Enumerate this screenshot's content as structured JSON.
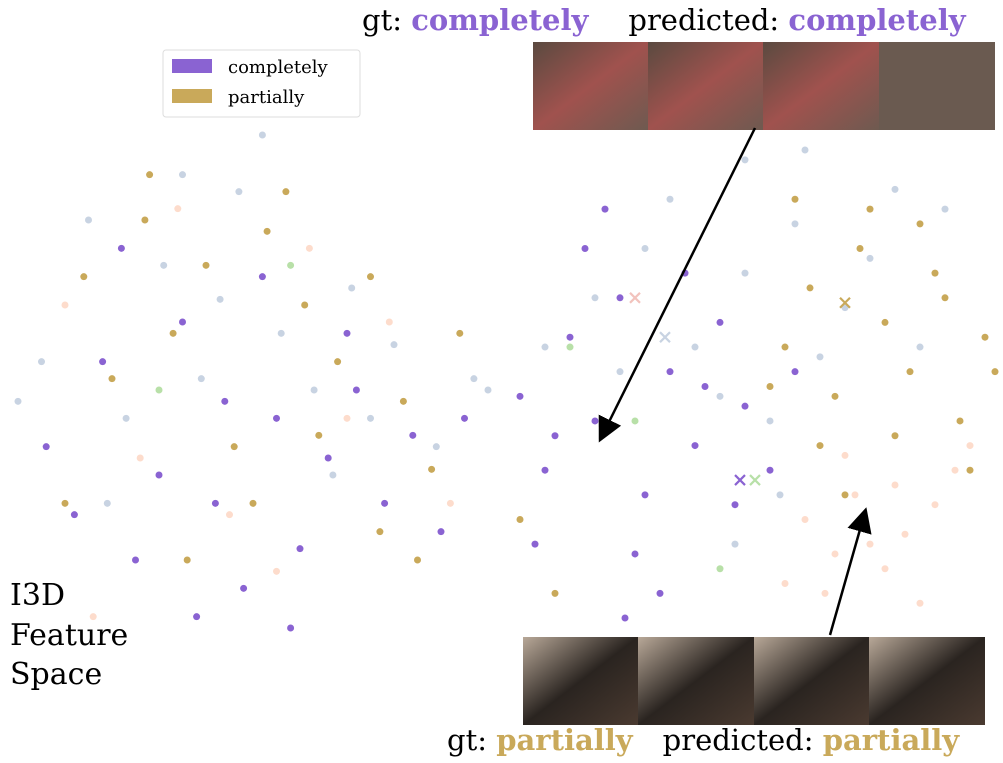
{
  "chart_data": [
    {
      "type": "scatter",
      "legend": "upper center",
      "series": [
        {
          "name": "completely",
          "color": "#8a63d2",
          "x": [
            6,
            12,
            18,
            25,
            30,
            35,
            42,
            48,
            55,
            60,
            66,
            72,
            78,
            84,
            90,
            95,
            22,
            38,
            52,
            70,
            58,
            44
          ],
          "y": [
            40,
            28,
            55,
            20,
            35,
            62,
            30,
            15,
            45,
            22,
            38,
            50,
            30,
            42,
            25,
            45,
            75,
            10,
            70,
            60,
            8,
            48
          ]
        },
        {
          "name": "partially",
          "color": "#c9a95a",
          "x": [
            14,
            20,
            27,
            33,
            40,
            46,
            53,
            61,
            68,
            75,
            82,
            88,
            94,
            28,
            50,
            64,
            36,
            77,
            10,
            57,
            85
          ],
          "y": [
            70,
            52,
            80,
            60,
            72,
            40,
            78,
            65,
            55,
            70,
            48,
            36,
            60,
            88,
            30,
            42,
            20,
            25,
            30,
            85,
            20
          ]
        },
        {
          "color": "#c8d3e2",
          "x": [
            5,
            15,
            23,
            31,
            39,
            47,
            56,
            63,
            71,
            80,
            89,
            97,
            19,
            43,
            67,
            35,
            52,
            75,
            0,
            100
          ],
          "y": [
            55,
            80,
            45,
            72,
            52,
            85,
            60,
            50,
            68,
            58,
            40,
            52,
            30,
            66,
            35,
            88,
            95,
            45,
            48,
            50
          ]
        },
        {
          "color": "#fddccc",
          "x": [
            10,
            26,
            45,
            62,
            79,
            92,
            34,
            55,
            16,
            70
          ],
          "y": [
            65,
            38,
            28,
            75,
            62,
            30,
            82,
            18,
            10,
            45
          ]
        },
        {
          "color": "#b8e0a8",
          "x": [
            30,
            58
          ],
          "y": [
            50,
            72
          ]
        }
      ]
    },
    {
      "type": "scatter",
      "series": [
        {
          "color": "#8a63d2",
          "x": [
            5,
            10,
            15,
            20,
            25,
            30,
            35,
            40,
            45,
            50,
            8,
            18,
            28,
            38,
            48,
            55,
            22,
            33,
            60,
            12,
            42,
            26
          ],
          "y": [
            50,
            35,
            62,
            45,
            70,
            30,
            55,
            40,
            65,
            48,
            20,
            80,
            18,
            75,
            28,
            35,
            88,
            10,
            55,
            42,
            52,
            5
          ]
        },
        {
          "color": "#c9a95a",
          "x": [
            58,
            63,
            68,
            73,
            78,
            83,
            88,
            93,
            98,
            65,
            75,
            85,
            95,
            70,
            80,
            90,
            5,
            12,
            60,
            100,
            55
          ],
          "y": [
            60,
            72,
            50,
            80,
            65,
            55,
            75,
            45,
            62,
            40,
            88,
            85,
            35,
            30,
            42,
            70,
            25,
            10,
            90,
            55,
            52
          ]
        },
        {
          "color": "#c8d3e2",
          "x": [
            20,
            30,
            40,
            50,
            60,
            70,
            80,
            45,
            55,
            65,
            35,
            75,
            25,
            50,
            62,
            85,
            10,
            48,
            57,
            90
          ],
          "y": [
            70,
            80,
            60,
            75,
            85,
            68,
            92,
            50,
            45,
            58,
            90,
            78,
            55,
            98,
            100,
            60,
            60,
            20,
            30,
            88
          ]
        },
        {
          "color": "#fddccc",
          "x": [
            62,
            68,
            72,
            78,
            82,
            88,
            92,
            66,
            75,
            85,
            95,
            70,
            80,
            58
          ],
          "y": [
            25,
            18,
            30,
            15,
            22,
            28,
            35,
            10,
            20,
            8,
            40,
            38,
            32,
            12
          ]
        },
        {
          "color": "#b8e0a8",
          "x": [
            15,
            28,
            45
          ],
          "y": [
            60,
            45,
            15
          ]
        },
        {
          "color": "#f2c3bd",
          "marker": "x",
          "x": [
            28
          ],
          "y": [
            70
          ]
        },
        {
          "color": "#c9a95a",
          "marker": "x",
          "x": [
            70
          ],
          "y": [
            69
          ]
        },
        {
          "color": "#c8d3e2",
          "marker": "x",
          "x": [
            34
          ],
          "y": [
            62
          ]
        },
        {
          "color": "#8a63d2",
          "marker": "x",
          "x": [
            49
          ],
          "y": [
            33
          ]
        },
        {
          "color": "#b8e0a8",
          "marker": "x",
          "x": [
            52
          ],
          "y": [
            33
          ]
        }
      ]
    }
  ],
  "side_label": [
    "I3D",
    "Feature",
    "Space"
  ],
  "top_caption": {
    "gt_label": "gt:",
    "gt_value": "completely",
    "pred_label": "predicted:",
    "pred_value": "completely"
  },
  "bottom_caption": {
    "gt_label": "gt:",
    "gt_value": "partially",
    "pred_label": "predicted:",
    "pred_value": "partially"
  }
}
